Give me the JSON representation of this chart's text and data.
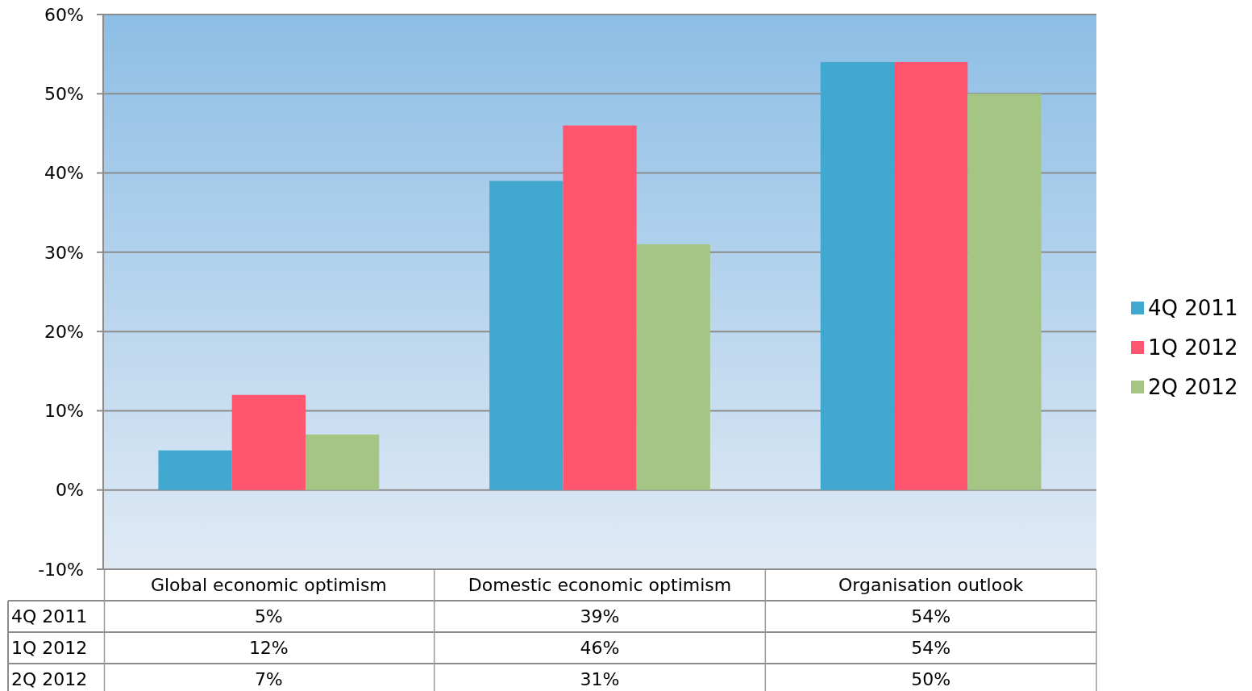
{
  "chart_data": {
    "type": "bar",
    "categories": [
      "Global economic optimism",
      "Domestic economic optimism",
      "Organisation outlook"
    ],
    "series": [
      {
        "name": "4Q 2011",
        "color": "#41a8d0",
        "values": [
          5,
          39,
          54
        ],
        "value_labels": [
          "5%",
          "39%",
          "54%"
        ]
      },
      {
        "name": "1Q 2012",
        "color": "#ff556e",
        "values": [
          12,
          46,
          54
        ],
        "value_labels": [
          "12%",
          "46%",
          "54%"
        ]
      },
      {
        "name": "2Q 2012",
        "color": "#a5c585",
        "values": [
          7,
          31,
          50
        ],
        "value_labels": [
          "7%",
          "31%",
          "50%"
        ]
      }
    ],
    "ylim": [
      -10,
      60
    ],
    "yticks": [
      {
        "value": -10,
        "label": "-10%"
      },
      {
        "value": 0,
        "label": "0%"
      },
      {
        "value": 10,
        "label": "10%"
      },
      {
        "value": 20,
        "label": "20%"
      },
      {
        "value": 30,
        "label": "30%"
      },
      {
        "value": 40,
        "label": "40%"
      },
      {
        "value": 50,
        "label": "50%"
      },
      {
        "value": 60,
        "label": "60%"
      }
    ],
    "grid": "y",
    "legend": "right"
  }
}
